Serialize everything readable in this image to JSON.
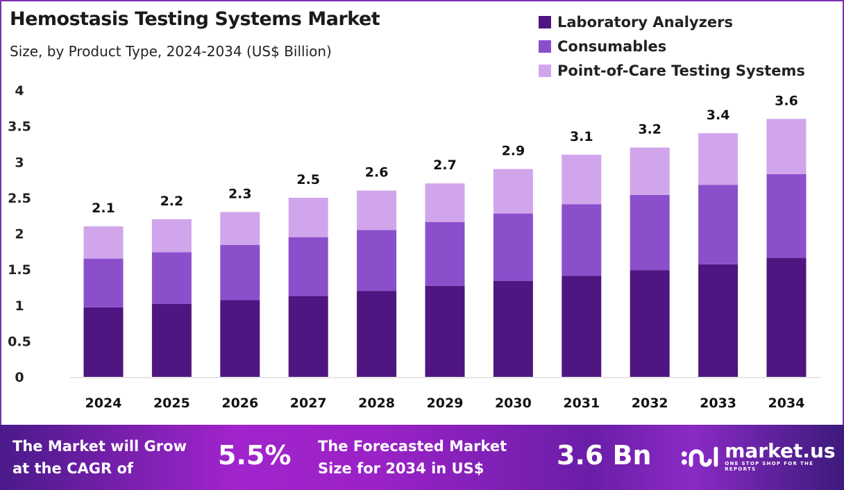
{
  "chart_data": {
    "type": "bar",
    "stacked": true,
    "title": "Hemostasis Testing Systems Market",
    "subtitle": "Size, by Product Type, 2024-2034 (US$ Billion)",
    "categories": [
      "2024",
      "2025",
      "2026",
      "2027",
      "2028",
      "2029",
      "2030",
      "2031",
      "2032",
      "2033",
      "2034"
    ],
    "series": [
      {
        "name": "Laboratory Analyzers",
        "color": "#4f1580",
        "values": [
          0.97,
          1.02,
          1.07,
          1.13,
          1.2,
          1.27,
          1.34,
          1.41,
          1.49,
          1.57,
          1.66
        ]
      },
      {
        "name": "Consumables",
        "color": "#8b4fcc",
        "values": [
          0.68,
          0.72,
          0.77,
          0.82,
          0.85,
          0.89,
          0.94,
          1.0,
          1.05,
          1.11,
          1.17
        ]
      },
      {
        "name": "Point-of-Care Testing Systems",
        "color": "#d1a5eb",
        "values": [
          0.45,
          0.46,
          0.46,
          0.55,
          0.55,
          0.54,
          0.62,
          0.69,
          0.66,
          0.72,
          0.77
        ]
      }
    ],
    "totals_labels": [
      "2.1",
      "2.2",
      "2.3",
      "2.5",
      "2.6",
      "2.7",
      "2.9",
      "3.1",
      "3.2",
      "3.4",
      "3.6"
    ],
    "yticks": [
      "0",
      "0.5",
      "1",
      "1.5",
      "2",
      "2.5",
      "3",
      "3.5",
      "4"
    ],
    "ylim": [
      0,
      4
    ],
    "grid": false,
    "legend": "top-right"
  },
  "banner": {
    "cagr_text_1": "The Market will Grow",
    "cagr_text_2": "at the CAGR of",
    "cagr_value": "5.5%",
    "forecast_text_1": "The Forecasted Market",
    "forecast_text_2": "Size for 2034 in US$",
    "forecast_value": "3.6 Bn",
    "logo_name": "market.us",
    "logo_tagline": "ONE STOP SHOP FOR THE REPORTS"
  }
}
